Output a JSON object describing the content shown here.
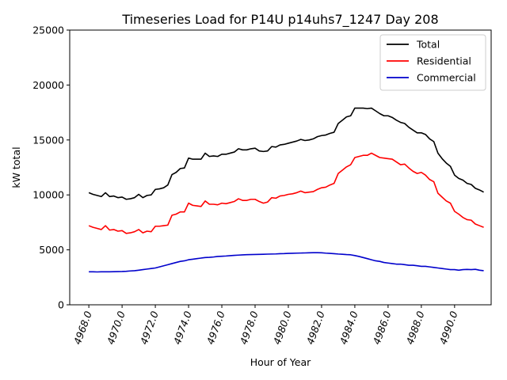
{
  "chart_data": {
    "type": "line",
    "title": "Timeseries Load for P14U p14uhs7_1247  Day 208",
    "xlabel": "Hour of Year",
    "ylabel": "kW total",
    "xlim": [
      4966.85,
      4992.2
    ],
    "ylim": [
      0,
      25000
    ],
    "x_ticks": [
      4968,
      4970,
      4972,
      4974,
      4976,
      4978,
      4980,
      4982,
      4984,
      4986,
      4988,
      4990
    ],
    "x_tick_labels": [
      "4968.0",
      "4970.0",
      "4972.0",
      "4974.0",
      "4976.0",
      "4978.0",
      "4980.0",
      "4982.0",
      "4984.0",
      "4986.0",
      "4988.0",
      "4990.0"
    ],
    "y_ticks": [
      0,
      5000,
      10000,
      15000,
      20000,
      25000
    ],
    "y_tick_labels": [
      "0",
      "5000",
      "10000",
      "15000",
      "20000",
      "25000"
    ],
    "grid": false,
    "legend_position": "top-right",
    "x_start": 4968,
    "x_step": 0.25,
    "series": [
      {
        "name": "Total",
        "color": "#000000",
        "values": [
          10200,
          10050,
          9950,
          9850,
          10200,
          9850,
          9900,
          9750,
          9800,
          9600,
          9650,
          9750,
          10050,
          9750,
          9950,
          10000,
          10500,
          10550,
          10650,
          10900,
          11850,
          12050,
          12400,
          12450,
          13350,
          13250,
          13250,
          13250,
          13800,
          13500,
          13550,
          13500,
          13700,
          13700,
          13800,
          13900,
          14200,
          14100,
          14100,
          14200,
          14250,
          14000,
          13950,
          14000,
          14400,
          14350,
          14550,
          14600,
          14700,
          14800,
          14900,
          15050,
          14950,
          15000,
          15100,
          15300,
          15400,
          15450,
          15600,
          15700,
          16500,
          16800,
          17100,
          17200,
          17900,
          17900,
          17900,
          17850,
          17900,
          17650,
          17400,
          17200,
          17200,
          17050,
          16800,
          16600,
          16500,
          16150,
          15900,
          15650,
          15650,
          15500,
          15100,
          14850,
          13800,
          13300,
          12900,
          12600,
          11800,
          11500,
          11350,
          11050,
          10950,
          10600,
          10450,
          10250
        ]
      },
      {
        "name": "Residential",
        "color": "#ff0000",
        "values": [
          7200,
          7050,
          6950,
          6850,
          7200,
          6800,
          6850,
          6700,
          6750,
          6500,
          6550,
          6650,
          6850,
          6550,
          6700,
          6650,
          7150,
          7150,
          7200,
          7250,
          8150,
          8250,
          8450,
          8450,
          9250,
          9050,
          9000,
          8950,
          9450,
          9150,
          9150,
          9100,
          9250,
          9200,
          9300,
          9400,
          9650,
          9500,
          9500,
          9600,
          9600,
          9400,
          9250,
          9350,
          9750,
          9700,
          9900,
          9950,
          10050,
          10100,
          10200,
          10350,
          10200,
          10250,
          10300,
          10500,
          10650,
          10700,
          10900,
          11050,
          11950,
          12250,
          12550,
          12750,
          13400,
          13500,
          13600,
          13600,
          13800,
          13600,
          13400,
          13350,
          13300,
          13250,
          13000,
          12750,
          12800,
          12450,
          12150,
          11950,
          12050,
          11800,
          11400,
          11200,
          10150,
          9800,
          9450,
          9250,
          8500,
          8250,
          7950,
          7750,
          7700,
          7350,
          7200,
          7050
        ]
      },
      {
        "name": "Commercial",
        "color": "#0000cc",
        "values": [
          3000,
          3000,
          2990,
          3000,
          3000,
          3000,
          3010,
          3020,
          3030,
          3050,
          3080,
          3100,
          3150,
          3200,
          3250,
          3300,
          3350,
          3450,
          3550,
          3650,
          3750,
          3850,
          3950,
          4000,
          4100,
          4150,
          4200,
          4250,
          4300,
          4320,
          4350,
          4400,
          4420,
          4440,
          4470,
          4500,
          4520,
          4540,
          4560,
          4570,
          4580,
          4590,
          4600,
          4610,
          4620,
          4630,
          4650,
          4660,
          4680,
          4690,
          4700,
          4710,
          4720,
          4730,
          4740,
          4740,
          4730,
          4700,
          4680,
          4650,
          4620,
          4600,
          4570,
          4550,
          4480,
          4400,
          4300,
          4200,
          4100,
          4000,
          3950,
          3850,
          3800,
          3750,
          3700,
          3700,
          3650,
          3600,
          3600,
          3550,
          3500,
          3500,
          3450,
          3400,
          3350,
          3300,
          3250,
          3200,
          3200,
          3150,
          3200,
          3220,
          3200,
          3230,
          3150,
          3100
        ]
      }
    ]
  }
}
